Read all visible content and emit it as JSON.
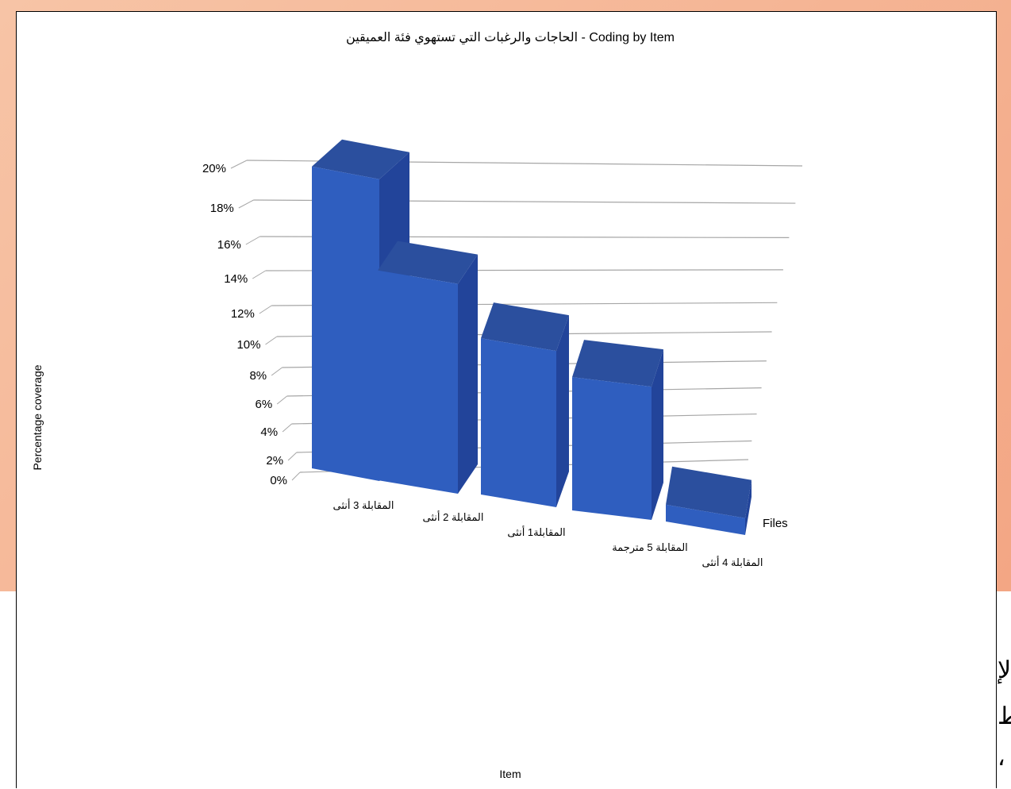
{
  "chart_data": {
    "type": "bar",
    "title": "الحاجات والرغبات التي تستهوي فئة العميقين - Coding by Item",
    "xlabel": "Item",
    "ylabel": "Percentage coverage",
    "depth_label": "Files",
    "categories": [
      "المقابلة 3 أنثى",
      "المقابلة 2 أنثى",
      "المقابلة1 أنثى",
      "المقابلة 5 مترجمة",
      "المقابلة 4 أنثى"
    ],
    "values": [
      19.7,
      13.7,
      10.2,
      8.7,
      1.1
    ],
    "y_ticks": [
      "0%",
      "2%",
      "4%",
      "6%",
      "8%",
      "10%",
      "12%",
      "14%",
      "16%",
      "18%",
      "20%"
    ],
    "ylim": [
      0,
      20
    ],
    "unit": "%",
    "grid": true,
    "colors": {
      "bar_front": "#2f5ebf",
      "bar_side": "#22449a",
      "bar_top": "#2b4f9e",
      "gridline": "#a6a6a6"
    }
  },
  "edge_fragments": [
    "لإ",
    "ط",
    "،"
  ]
}
